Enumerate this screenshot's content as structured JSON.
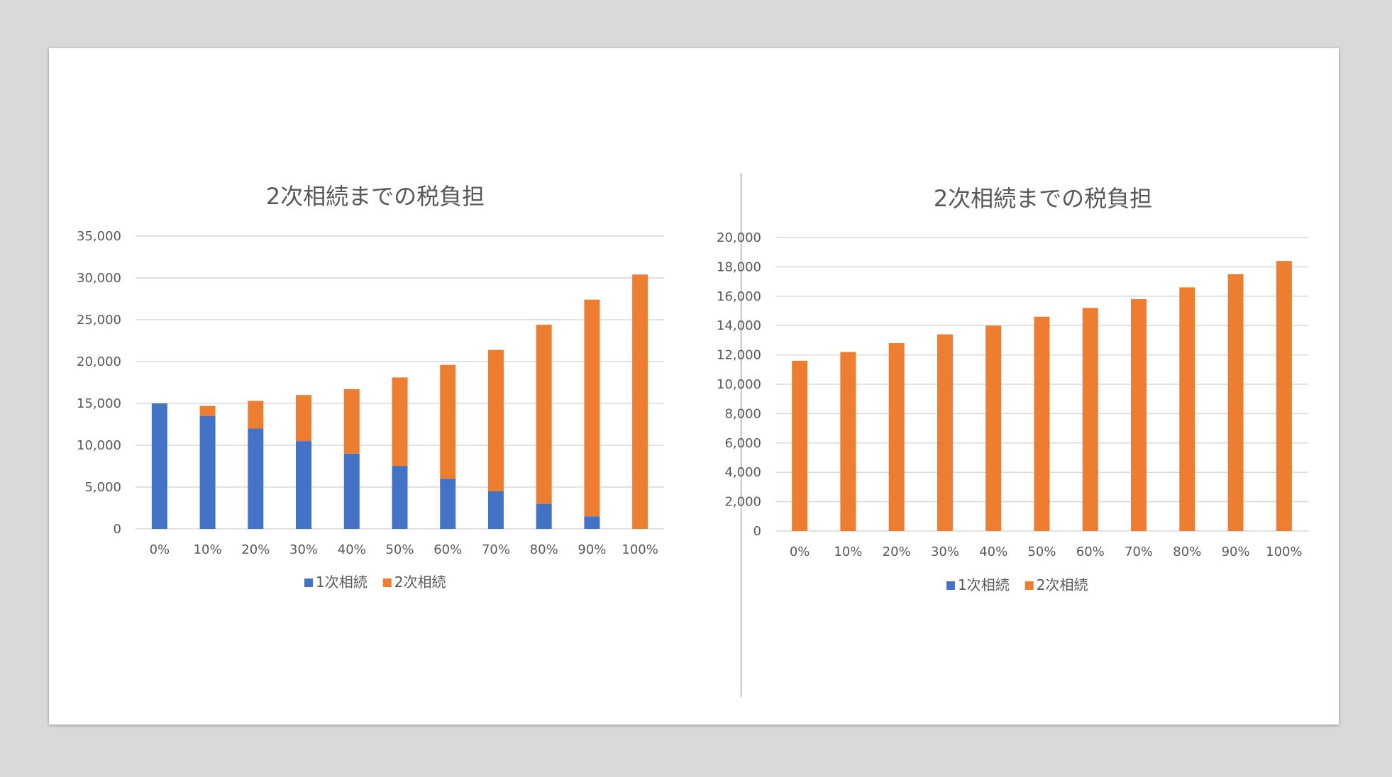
{
  "colors": {
    "series1": "#4472c4",
    "series2": "#ed7d31",
    "grid": "#d9d9d9",
    "text": "#595959"
  },
  "chart_data": [
    {
      "type": "bar",
      "stacked": true,
      "title": "2次相続までの税負担",
      "categories": [
        "0%",
        "10%",
        "20%",
        "30%",
        "40%",
        "50%",
        "60%",
        "70%",
        "80%",
        "90%",
        "100%"
      ],
      "series": [
        {
          "name": "1次相続",
          "values": [
            15000,
            13500,
            12000,
            10500,
            9000,
            7500,
            6000,
            4500,
            3000,
            1500,
            0
          ]
        },
        {
          "name": "2次相続",
          "values": [
            0,
            1200,
            3300,
            5500,
            7700,
            10600,
            13600,
            16900,
            21400,
            25900,
            30400
          ]
        }
      ],
      "ylim": [
        0,
        35000
      ],
      "yticks": [
        "35,000",
        "30,000",
        "25,000",
        "20,000",
        "15,000",
        "10,000",
        "5,000",
        "0"
      ],
      "legend": "bottom",
      "grid": true
    },
    {
      "type": "bar",
      "stacked": true,
      "title": "2次相続までの税負担",
      "categories": [
        "0%",
        "10%",
        "20%",
        "30%",
        "40%",
        "50%",
        "60%",
        "70%",
        "80%",
        "90%",
        "100%"
      ],
      "series": [
        {
          "name": "1次相続",
          "values": [
            0,
            0,
            0,
            0,
            0,
            0,
            0,
            0,
            0,
            0,
            0
          ]
        },
        {
          "name": "2次相続",
          "values": [
            11600,
            12200,
            12800,
            13400,
            14000,
            14600,
            15200,
            15800,
            16600,
            17500,
            18400
          ]
        }
      ],
      "ylim": [
        0,
        20000
      ],
      "yticks": [
        "20,000",
        "18,000",
        "16,000",
        "14,000",
        "12,000",
        "10,000",
        "8,000",
        "6,000",
        "4,000",
        "2,000",
        "0"
      ],
      "legend": "bottom",
      "grid": true
    }
  ]
}
